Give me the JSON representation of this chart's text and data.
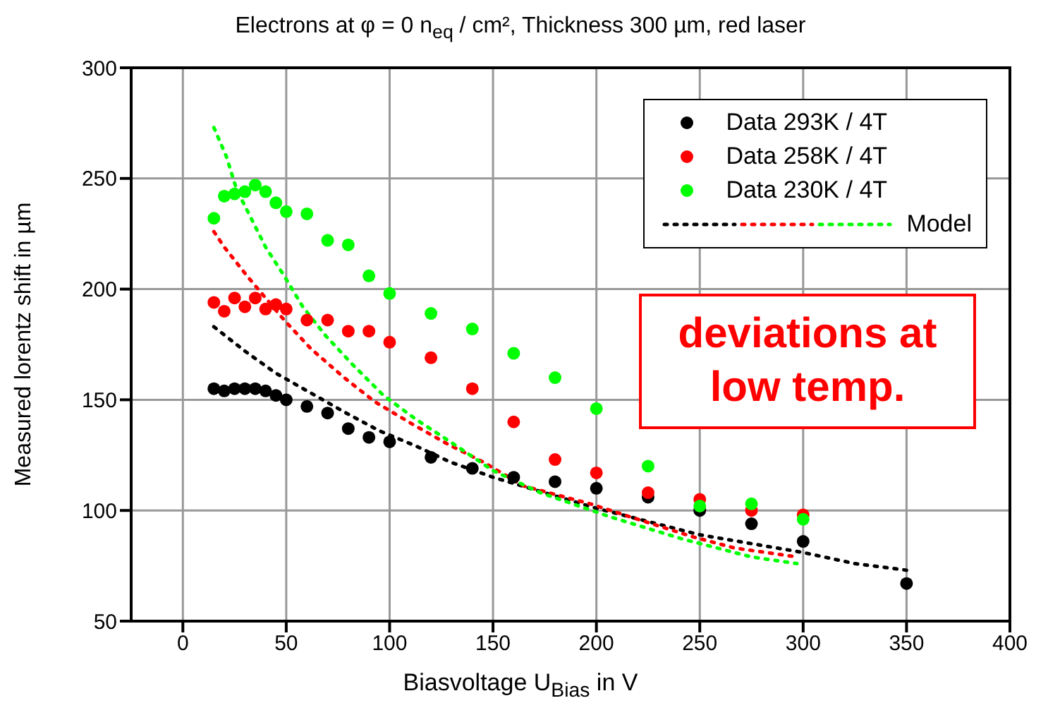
{
  "chart_data": {
    "type": "scatter",
    "title": "Electrons at φ = 0 n$_{eq}$ / cm², Thickness 300 µm, red laser",
    "xlabel": "Biasvoltage U$_{Bias}$ in V",
    "ylabel": "Measured lorentz shift in µm",
    "annotations": [
      "deviations at low temp."
    ],
    "xlim": [
      -25,
      400
    ],
    "xticks": [
      0,
      50,
      100,
      150,
      200,
      250,
      300,
      350,
      400
    ],
    "ylim": [
      50,
      300
    ],
    "yticks": [
      50,
      100,
      150,
      200,
      250,
      300
    ],
    "grid": true,
    "legend": "top right",
    "marker": "circle",
    "series": [
      {
        "name": "Data 293K / 4T",
        "color": "#000000",
        "x": [
          15,
          20,
          25,
          30,
          35,
          40,
          45,
          50,
          60,
          70,
          80,
          90,
          100,
          120,
          140,
          160,
          180,
          200,
          225,
          250,
          275,
          300,
          350
        ],
        "values": [
          155,
          154,
          155,
          155,
          155,
          154,
          152,
          150,
          147,
          144,
          137,
          133,
          131,
          124,
          119,
          115,
          113,
          110,
          106,
          100,
          94,
          86,
          67
        ]
      },
      {
        "name": "Data 258K / 4T",
        "color": "#ff0000",
        "x": [
          15,
          20,
          25,
          30,
          35,
          40,
          45,
          50,
          60,
          70,
          80,
          90,
          100,
          120,
          140,
          160,
          180,
          200,
          225,
          250,
          275,
          300
        ],
        "values": [
          194,
          190,
          196,
          192,
          196,
          191,
          193,
          191,
          186,
          186,
          181,
          181,
          176,
          169,
          155,
          140,
          123,
          117,
          108,
          105,
          100,
          98
        ]
      },
      {
        "name": "Data 230K / 4T",
        "color": "#00ff00",
        "x": [
          15,
          20,
          25,
          30,
          35,
          40,
          45,
          50,
          60,
          70,
          80,
          90,
          100,
          120,
          140,
          160,
          180,
          200,
          225,
          250,
          275,
          300
        ],
        "values": [
          232,
          242,
          243,
          244,
          247,
          244,
          239,
          235,
          234,
          222,
          220,
          206,
          198,
          189,
          182,
          171,
          160,
          146,
          120,
          102,
          103,
          96
        ]
      },
      {
        "color": "#000000",
        "type": "line",
        "line_style": "dotted",
        "marker": "none",
        "x": [
          15,
          30,
          45,
          62,
          79,
          95,
          113,
          129,
          150,
          175,
          200,
          225,
          250,
          275,
          300,
          325,
          350
        ],
        "values": [
          183,
          172,
          162,
          153,
          144,
          136,
          129,
          122,
          115,
          108,
          101,
          95,
          89,
          85,
          81,
          76,
          73
        ]
      },
      {
        "color": "#ff0000",
        "type": "line",
        "line_style": "dotted",
        "marker": "none",
        "x": [
          15,
          20,
          31,
          49,
          62,
          78,
          93,
          111,
          128,
          145,
          165,
          197,
          220,
          247,
          267,
          297
        ],
        "values": [
          226,
          219,
          206,
          186,
          173,
          160,
          149,
          139,
          130,
          122,
          111,
          103,
          96,
          88,
          83,
          79
        ]
      },
      {
        "name": "Model",
        "color": "#00ff00",
        "type": "line",
        "line_style": "dotted",
        "marker": "none",
        "x": [
          15,
          21,
          26,
          33,
          40,
          49,
          58,
          69,
          82,
          97,
          113,
          131,
          150,
          173,
          207,
          242,
          275,
          297
        ],
        "values": [
          273,
          260,
          245,
          232,
          219,
          206,
          192,
          179,
          166,
          152,
          141,
          130,
          118,
          108,
          97,
          87,
          79,
          76
        ]
      }
    ]
  }
}
